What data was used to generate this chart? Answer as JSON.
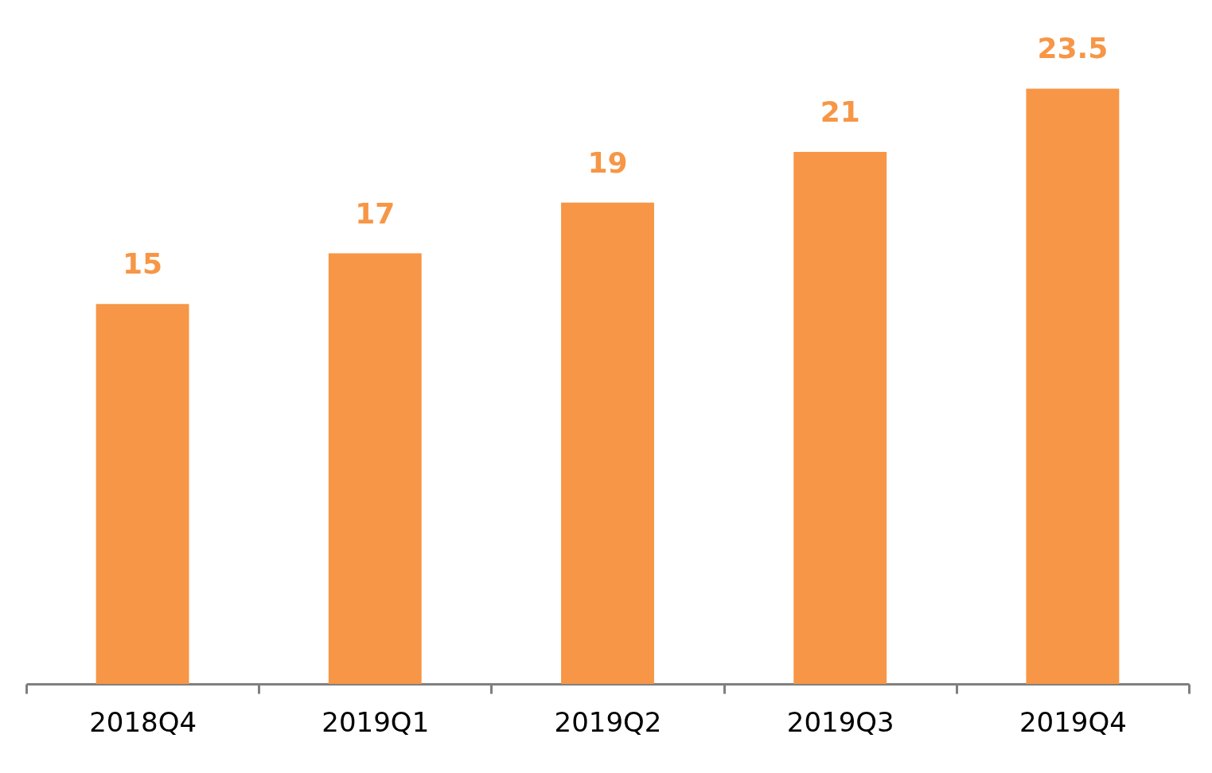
{
  "chart_data": {
    "type": "bar",
    "categories": [
      "2018Q4",
      "2019Q1",
      "2019Q2",
      "2019Q3",
      "2019Q4"
    ],
    "values": [
      15,
      17,
      19,
      21,
      23.5
    ],
    "color": "#f79646",
    "ylim": [
      0,
      27
    ],
    "data_labels": true,
    "tick_labels": "x"
  }
}
